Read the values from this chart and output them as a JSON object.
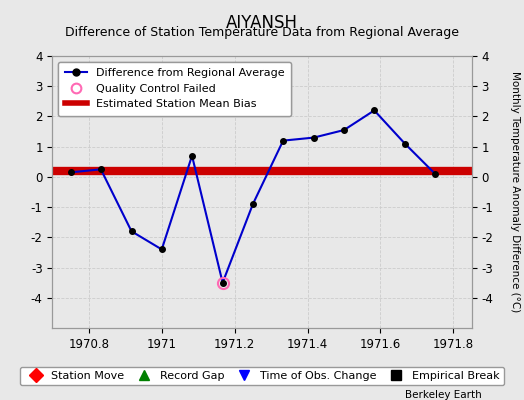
{
  "title": "AIYANSH",
  "subtitle": "Difference of Station Temperature Data from Regional Average",
  "ylabel_right": "Monthly Temperature Anomaly Difference (°C)",
  "background_color": "#e8e8e8",
  "plot_bg_color": "#e8e8e8",
  "x_data": [
    1970.75,
    1970.833,
    1970.917,
    1971.0,
    1971.083,
    1971.167,
    1971.25,
    1971.333,
    1971.417,
    1971.5,
    1971.583,
    1971.667,
    1971.75
  ],
  "y_data": [
    0.15,
    0.25,
    -1.8,
    -2.4,
    0.7,
    -3.5,
    -0.9,
    1.2,
    1.3,
    1.55,
    2.2,
    1.1,
    0.1
  ],
  "qc_failed_x": [
    1971.167
  ],
  "qc_failed_y": [
    -3.5
  ],
  "bias_y": 0.2,
  "line_color": "#0000cc",
  "line_marker_color": "#000000",
  "bias_color": "#cc0000",
  "qc_color": "#ff69b4",
  "xlim": [
    1970.7,
    1971.85
  ],
  "ylim": [
    -5,
    4
  ],
  "yticks": [
    -4,
    -3,
    -2,
    -1,
    0,
    1,
    2,
    3,
    4
  ],
  "xticks": [
    1970.8,
    1971.0,
    1971.2,
    1971.4,
    1971.6,
    1971.8
  ],
  "xtick_labels": [
    "1970.8",
    "1971",
    "1971.2",
    "1971.4",
    "1971.6",
    "1971.8"
  ],
  "grid_color": "#cccccc",
  "watermark": "Berkeley Earth",
  "bias_linewidth": 6,
  "title_fontsize": 12,
  "subtitle_fontsize": 9
}
